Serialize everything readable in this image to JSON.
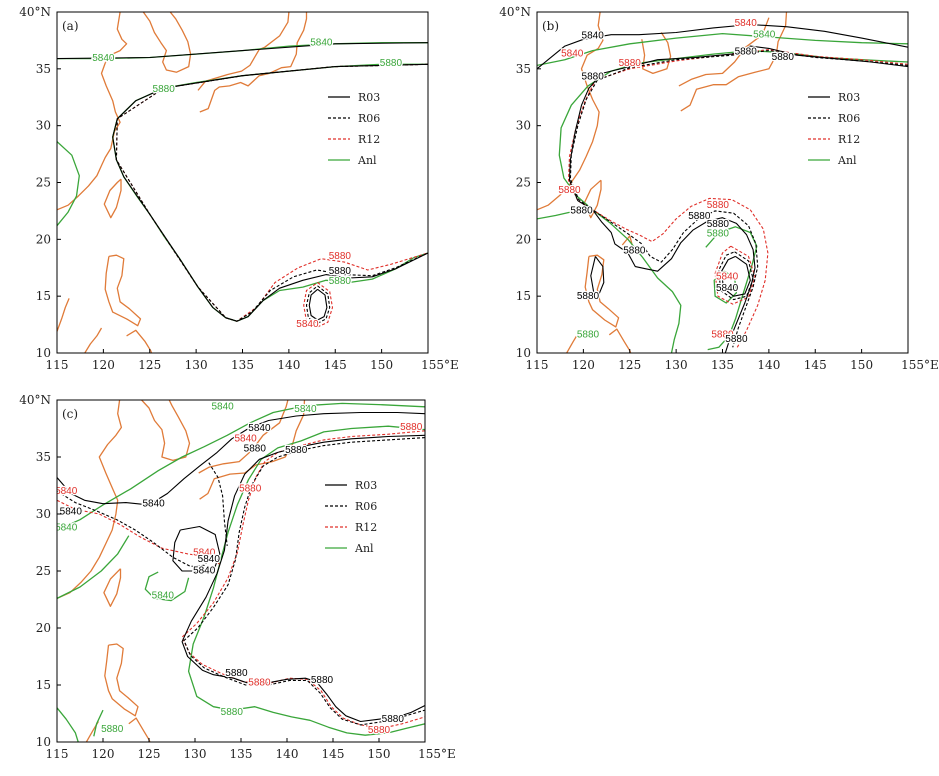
{
  "colors": {
    "coast": "#e07b39",
    "R03": "#000000",
    "R06": "#000000",
    "R12": "#e0302a",
    "Anl": "#3aa63a"
  },
  "axes": {
    "x_ticks": [
      "115",
      "120",
      "125",
      "130",
      "135",
      "140",
      "145",
      "150",
      "155°E"
    ],
    "y_ticks": [
      "10",
      "15",
      "20",
      "25",
      "30",
      "35",
      "40°N"
    ],
    "lon_range": [
      115,
      155
    ],
    "lat_range": [
      10,
      40
    ]
  },
  "legend": [
    {
      "key": "R03",
      "label": "R03",
      "style": "solid"
    },
    {
      "key": "R06",
      "label": "R06",
      "style": "dashed"
    },
    {
      "key": "R12",
      "label": "R12",
      "style": "dashed"
    },
    {
      "key": "Anl",
      "label": "Anl",
      "style": "solid"
    }
  ],
  "panels": [
    {
      "id": "a",
      "label": "(a)",
      "contour_labels": [
        {
          "text": "5840",
          "lon": 143.5,
          "lat": 37.3,
          "color": "Anl"
        },
        {
          "text": "5840",
          "lon": 120,
          "lat": 35.9,
          "color": "Anl"
        },
        {
          "text": "5880",
          "lon": 151,
          "lat": 35.5,
          "color": "Anl"
        },
        {
          "text": "5880",
          "lon": 126.5,
          "lat": 33.2,
          "color": "Anl"
        },
        {
          "text": "5880",
          "lon": 145.5,
          "lat": 18.5,
          "color": "R12"
        },
        {
          "text": "5880",
          "lon": 145.5,
          "lat": 17.2,
          "color": "R03"
        },
        {
          "text": "5880",
          "lon": 145.5,
          "lat": 16.3,
          "color": "Anl"
        },
        {
          "text": "5840",
          "lon": 142,
          "lat": 12.5,
          "color": "R12"
        }
      ]
    },
    {
      "id": "b",
      "label": "(b)",
      "contour_labels": [
        {
          "text": "5840",
          "lon": 137.5,
          "lat": 39,
          "color": "R12"
        },
        {
          "text": "5840",
          "lon": 139.5,
          "lat": 38,
          "color": "Anl"
        },
        {
          "text": "5840",
          "lon": 121,
          "lat": 37.9,
          "color": "R03"
        },
        {
          "text": "5840",
          "lon": 118.8,
          "lat": 36.3,
          "color": "R12"
        },
        {
          "text": "5880",
          "lon": 125,
          "lat": 35.5,
          "color": "R12"
        },
        {
          "text": "5880",
          "lon": 137.5,
          "lat": 36.5,
          "color": "R03"
        },
        {
          "text": "5880",
          "lon": 141.5,
          "lat": 36,
          "color": "R03"
        },
        {
          "text": "5880",
          "lon": 121,
          "lat": 34.3,
          "color": "R03"
        },
        {
          "text": "5880",
          "lon": 118.5,
          "lat": 24.3,
          "color": "R12"
        },
        {
          "text": "5880",
          "lon": 119.8,
          "lat": 22.5,
          "color": "R03"
        },
        {
          "text": "5880",
          "lon": 134.5,
          "lat": 23,
          "color": "R12"
        },
        {
          "text": "5880",
          "lon": 132.5,
          "lat": 22,
          "color": "R03"
        },
        {
          "text": "5880",
          "lon": 134.5,
          "lat": 21.3,
          "color": "R03"
        },
        {
          "text": "5880",
          "lon": 134.5,
          "lat": 20.5,
          "color": "Anl"
        },
        {
          "text": "5880",
          "lon": 125.5,
          "lat": 19,
          "color": "R03"
        },
        {
          "text": "5840",
          "lon": 135.5,
          "lat": 16.7,
          "color": "R12"
        },
        {
          "text": "5840",
          "lon": 135.5,
          "lat": 15.7,
          "color": "R03"
        },
        {
          "text": "5880",
          "lon": 120.5,
          "lat": 15,
          "color": "R03"
        },
        {
          "text": "5880",
          "lon": 120.5,
          "lat": 11.6,
          "color": "Anl"
        },
        {
          "text": "5880",
          "lon": 135,
          "lat": 11.6,
          "color": "R12"
        },
        {
          "text": "5880",
          "lon": 136.5,
          "lat": 11.2,
          "color": "R03"
        }
      ]
    },
    {
      "id": "c",
      "label": "(c)",
      "contour_labels": [
        {
          "text": "5840",
          "lon": 133,
          "lat": 39.4,
          "color": "Anl"
        },
        {
          "text": "5840",
          "lon": 142,
          "lat": 39.2,
          "color": "Anl"
        },
        {
          "text": "5840",
          "lon": 137,
          "lat": 37.5,
          "color": "R03"
        },
        {
          "text": "5840",
          "lon": 135.5,
          "lat": 36.6,
          "color": "R12"
        },
        {
          "text": "5880",
          "lon": 136.5,
          "lat": 35.7,
          "color": "R03"
        },
        {
          "text": "5880",
          "lon": 141,
          "lat": 35.6,
          "color": "R03"
        },
        {
          "text": "5880",
          "lon": 153.5,
          "lat": 37.6,
          "color": "R12"
        },
        {
          "text": "5840",
          "lon": 116,
          "lat": 32,
          "color": "R12"
        },
        {
          "text": "5840",
          "lon": 125.5,
          "lat": 30.9,
          "color": "R03"
        },
        {
          "text": "5840",
          "lon": 116.5,
          "lat": 30.2,
          "color": "R03"
        },
        {
          "text": "5840",
          "lon": 116,
          "lat": 28.8,
          "color": "Anl"
        },
        {
          "text": "5880",
          "lon": 136,
          "lat": 32.2,
          "color": "R12"
        },
        {
          "text": "5840",
          "lon": 131,
          "lat": 26.6,
          "color": "R12"
        },
        {
          "text": "5840",
          "lon": 131.5,
          "lat": 26,
          "color": "R03"
        },
        {
          "text": "5840",
          "lon": 131,
          "lat": 25,
          "color": "R03"
        },
        {
          "text": "5840",
          "lon": 126.5,
          "lat": 22.8,
          "color": "Anl"
        },
        {
          "text": "5880",
          "lon": 134.5,
          "lat": 16,
          "color": "R03"
        },
        {
          "text": "5880",
          "lon": 137,
          "lat": 15.2,
          "color": "R12"
        },
        {
          "text": "5880",
          "lon": 143.8,
          "lat": 15.4,
          "color": "R03"
        },
        {
          "text": "5880",
          "lon": 134,
          "lat": 12.6,
          "color": "Anl"
        },
        {
          "text": "5880",
          "lon": 121,
          "lat": 11.1,
          "color": "Anl"
        },
        {
          "text": "5880",
          "lon": 151.5,
          "lat": 12,
          "color": "R03"
        },
        {
          "text": "5880",
          "lon": 150,
          "lat": 11,
          "color": "R12"
        }
      ]
    }
  ]
}
